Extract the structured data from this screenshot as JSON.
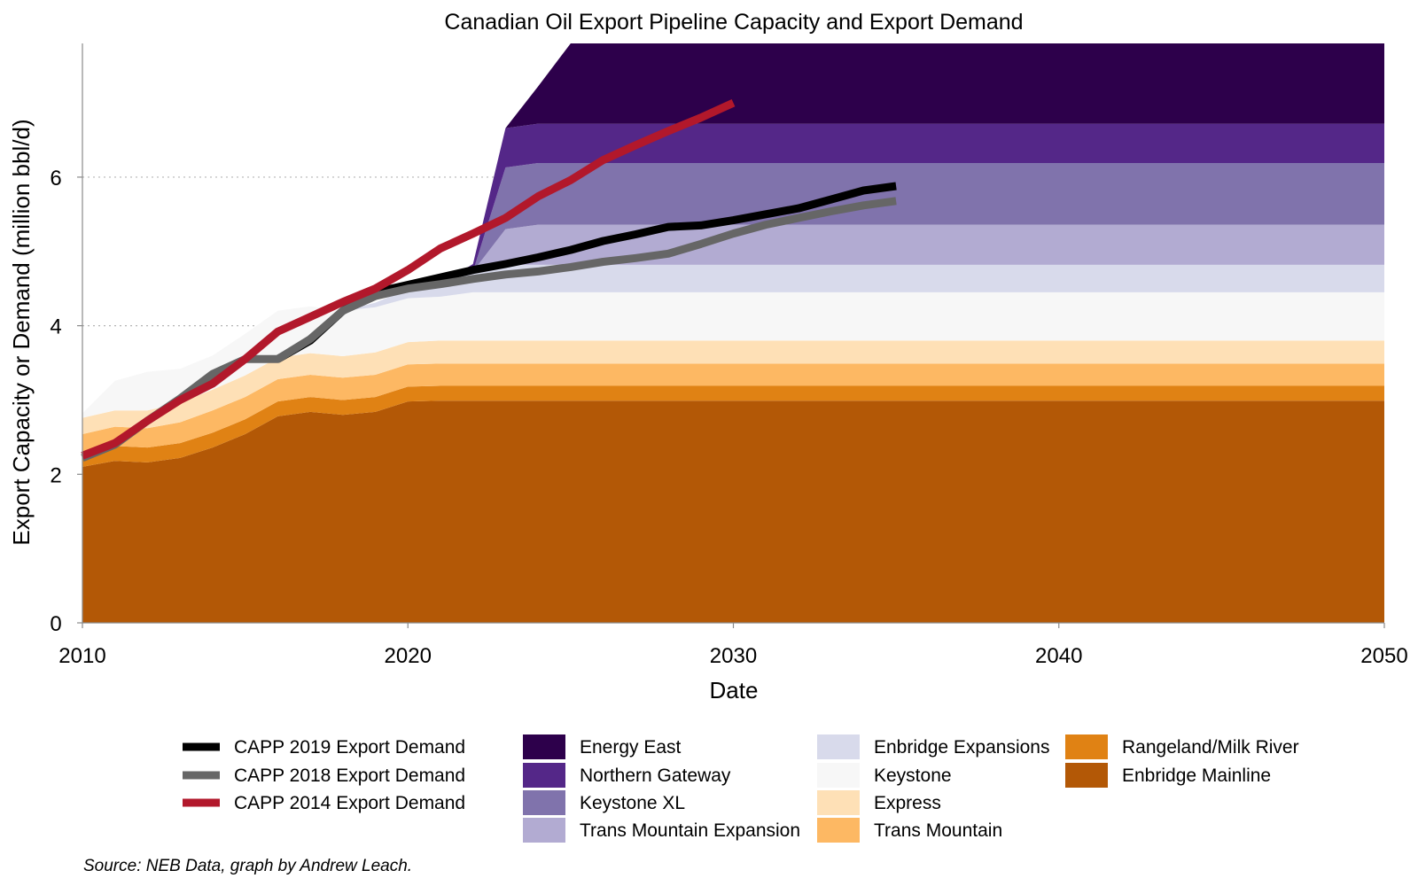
{
  "chart_data": {
    "type": "area",
    "title": "Canadian Oil Export Pipeline Capacity and Export Demand",
    "xlabel": "Date",
    "ylabel": "Export Capacity or Demand (million bbl/d)",
    "xlim": [
      2010,
      2050
    ],
    "ylim": [
      0,
      7.8
    ],
    "x_ticks": [
      2010,
      2020,
      2030,
      2040,
      2050
    ],
    "y_ticks": [
      0,
      2,
      4,
      6
    ],
    "grid": "dotted horizontal lines at 4 and 6",
    "legend_position": "bottom",
    "source": "Source: NEB Data, graph by Andrew Leach.",
    "capacity_x": [
      2010,
      2011,
      2012,
      2013,
      2014,
      2015,
      2016,
      2017,
      2018,
      2019,
      2020,
      2021,
      2022,
      2023,
      2024,
      2025,
      2030,
      2040,
      2050
    ],
    "capacity_series": [
      {
        "name": "Enbridge Mainline",
        "color": "#b35806",
        "values": [
          2.1,
          2.18,
          2.16,
          2.22,
          2.36,
          2.54,
          2.78,
          2.84,
          2.8,
          2.84,
          2.98,
          2.99,
          2.99,
          2.99,
          2.99,
          2.99,
          2.99,
          2.99,
          2.99
        ]
      },
      {
        "name": "Rangeland/Milk River",
        "color": "#e08214",
        "values": [
          0.2,
          0.2,
          0.2,
          0.2,
          0.2,
          0.2,
          0.2,
          0.2,
          0.2,
          0.2,
          0.2,
          0.2,
          0.2,
          0.2,
          0.2,
          0.2,
          0.2,
          0.2,
          0.2
        ]
      },
      {
        "name": "Trans Mountain",
        "color": "#fdb863",
        "values": [
          0.24,
          0.26,
          0.26,
          0.28,
          0.3,
          0.3,
          0.3,
          0.3,
          0.3,
          0.3,
          0.3,
          0.3,
          0.3,
          0.3,
          0.3,
          0.3,
          0.3,
          0.3,
          0.3
        ]
      },
      {
        "name": "Express",
        "color": "#fee0b6",
        "values": [
          0.22,
          0.22,
          0.24,
          0.26,
          0.28,
          0.29,
          0.29,
          0.29,
          0.29,
          0.3,
          0.3,
          0.31,
          0.31,
          0.31,
          0.31,
          0.31,
          0.31,
          0.31,
          0.31
        ]
      },
      {
        "name": "Keystone",
        "color": "#f7f7f7",
        "values": [
          0.06,
          0.4,
          0.52,
          0.46,
          0.46,
          0.56,
          0.63,
          0.63,
          0.61,
          0.61,
          0.59,
          0.59,
          0.65,
          0.65,
          0.65,
          0.65,
          0.65,
          0.65,
          0.65
        ]
      },
      {
        "name": "Enbridge Expansions",
        "color": "#d8daeb",
        "values": [
          0,
          0,
          0,
          0,
          0,
          0,
          0,
          0,
          0,
          0.06,
          0.12,
          0.17,
          0.28,
          0.37,
          0.37,
          0.37,
          0.37,
          0.37,
          0.37
        ]
      },
      {
        "name": "Trans Mountain Expansion",
        "color": "#b2abd2",
        "values": [
          0,
          0,
          0,
          0,
          0,
          0,
          0,
          0,
          0,
          0,
          0,
          0,
          0,
          0.48,
          0.54,
          0.54,
          0.54,
          0.54,
          0.54
        ]
      },
      {
        "name": "Keystone XL",
        "color": "#8073ac",
        "values": [
          0,
          0,
          0,
          0,
          0,
          0,
          0,
          0,
          0,
          0,
          0,
          0,
          0,
          0.83,
          0.83,
          0.83,
          0.83,
          0.83,
          0.83
        ]
      },
      {
        "name": "Northern Gateway",
        "color": "#542788",
        "values": [
          0,
          0,
          0,
          0,
          0,
          0,
          0,
          0,
          0,
          0,
          0,
          0,
          0.1,
          0.53,
          0.53,
          0.53,
          0.53,
          0.53,
          0.53
        ]
      },
      {
        "name": "Energy East",
        "color": "#2d004b",
        "values": [
          0,
          0,
          0,
          0,
          0,
          0,
          0,
          0,
          0,
          0,
          0,
          0,
          0,
          0.0,
          0.5,
          1.1,
          1.1,
          1.1,
          1.1
        ]
      }
    ],
    "demand_series": [
      {
        "name": "CAPP 2019 Export Demand",
        "color": "#000000",
        "x": [
          2016,
          2017,
          2018,
          2019,
          2020,
          2021,
          2022,
          2023,
          2024,
          2025,
          2026,
          2027,
          2028,
          2029,
          2030,
          2031,
          2032,
          2033,
          2034,
          2035
        ],
        "values": [
          3.55,
          3.8,
          4.2,
          4.45,
          4.55,
          4.65,
          4.75,
          4.83,
          4.92,
          5.02,
          5.14,
          5.23,
          5.33,
          5.35,
          5.42,
          5.5,
          5.58,
          5.7,
          5.82,
          5.88
        ]
      },
      {
        "name": "CAPP 2018 Export Demand",
        "color": "#666666",
        "x": [
          2010,
          2011,
          2012,
          2013,
          2014,
          2015,
          2016,
          2017,
          2018,
          2019,
          2020,
          2021,
          2022,
          2023,
          2024,
          2025,
          2026,
          2027,
          2028,
          2029,
          2030,
          2031,
          2032,
          2033,
          2034,
          2035
        ],
        "values": [
          2.22,
          2.4,
          2.72,
          3.02,
          3.35,
          3.55,
          3.55,
          3.82,
          4.2,
          4.4,
          4.5,
          4.56,
          4.63,
          4.69,
          4.73,
          4.79,
          4.86,
          4.91,
          4.97,
          5.1,
          5.24,
          5.36,
          5.45,
          5.54,
          5.62,
          5.68
        ]
      },
      {
        "name": "CAPP 2014 Export Demand",
        "color": "#b2182b",
        "x": [
          2010,
          2011,
          2012,
          2013,
          2014,
          2015,
          2016,
          2017,
          2018,
          2019,
          2020,
          2021,
          2022,
          2023,
          2024,
          2025,
          2026,
          2027,
          2028,
          2029,
          2030
        ],
        "values": [
          2.25,
          2.42,
          2.72,
          3.0,
          3.22,
          3.55,
          3.92,
          4.12,
          4.32,
          4.5,
          4.75,
          5.04,
          5.24,
          5.45,
          5.74,
          5.96,
          6.23,
          6.43,
          6.62,
          6.8,
          7.0
        ]
      }
    ]
  }
}
